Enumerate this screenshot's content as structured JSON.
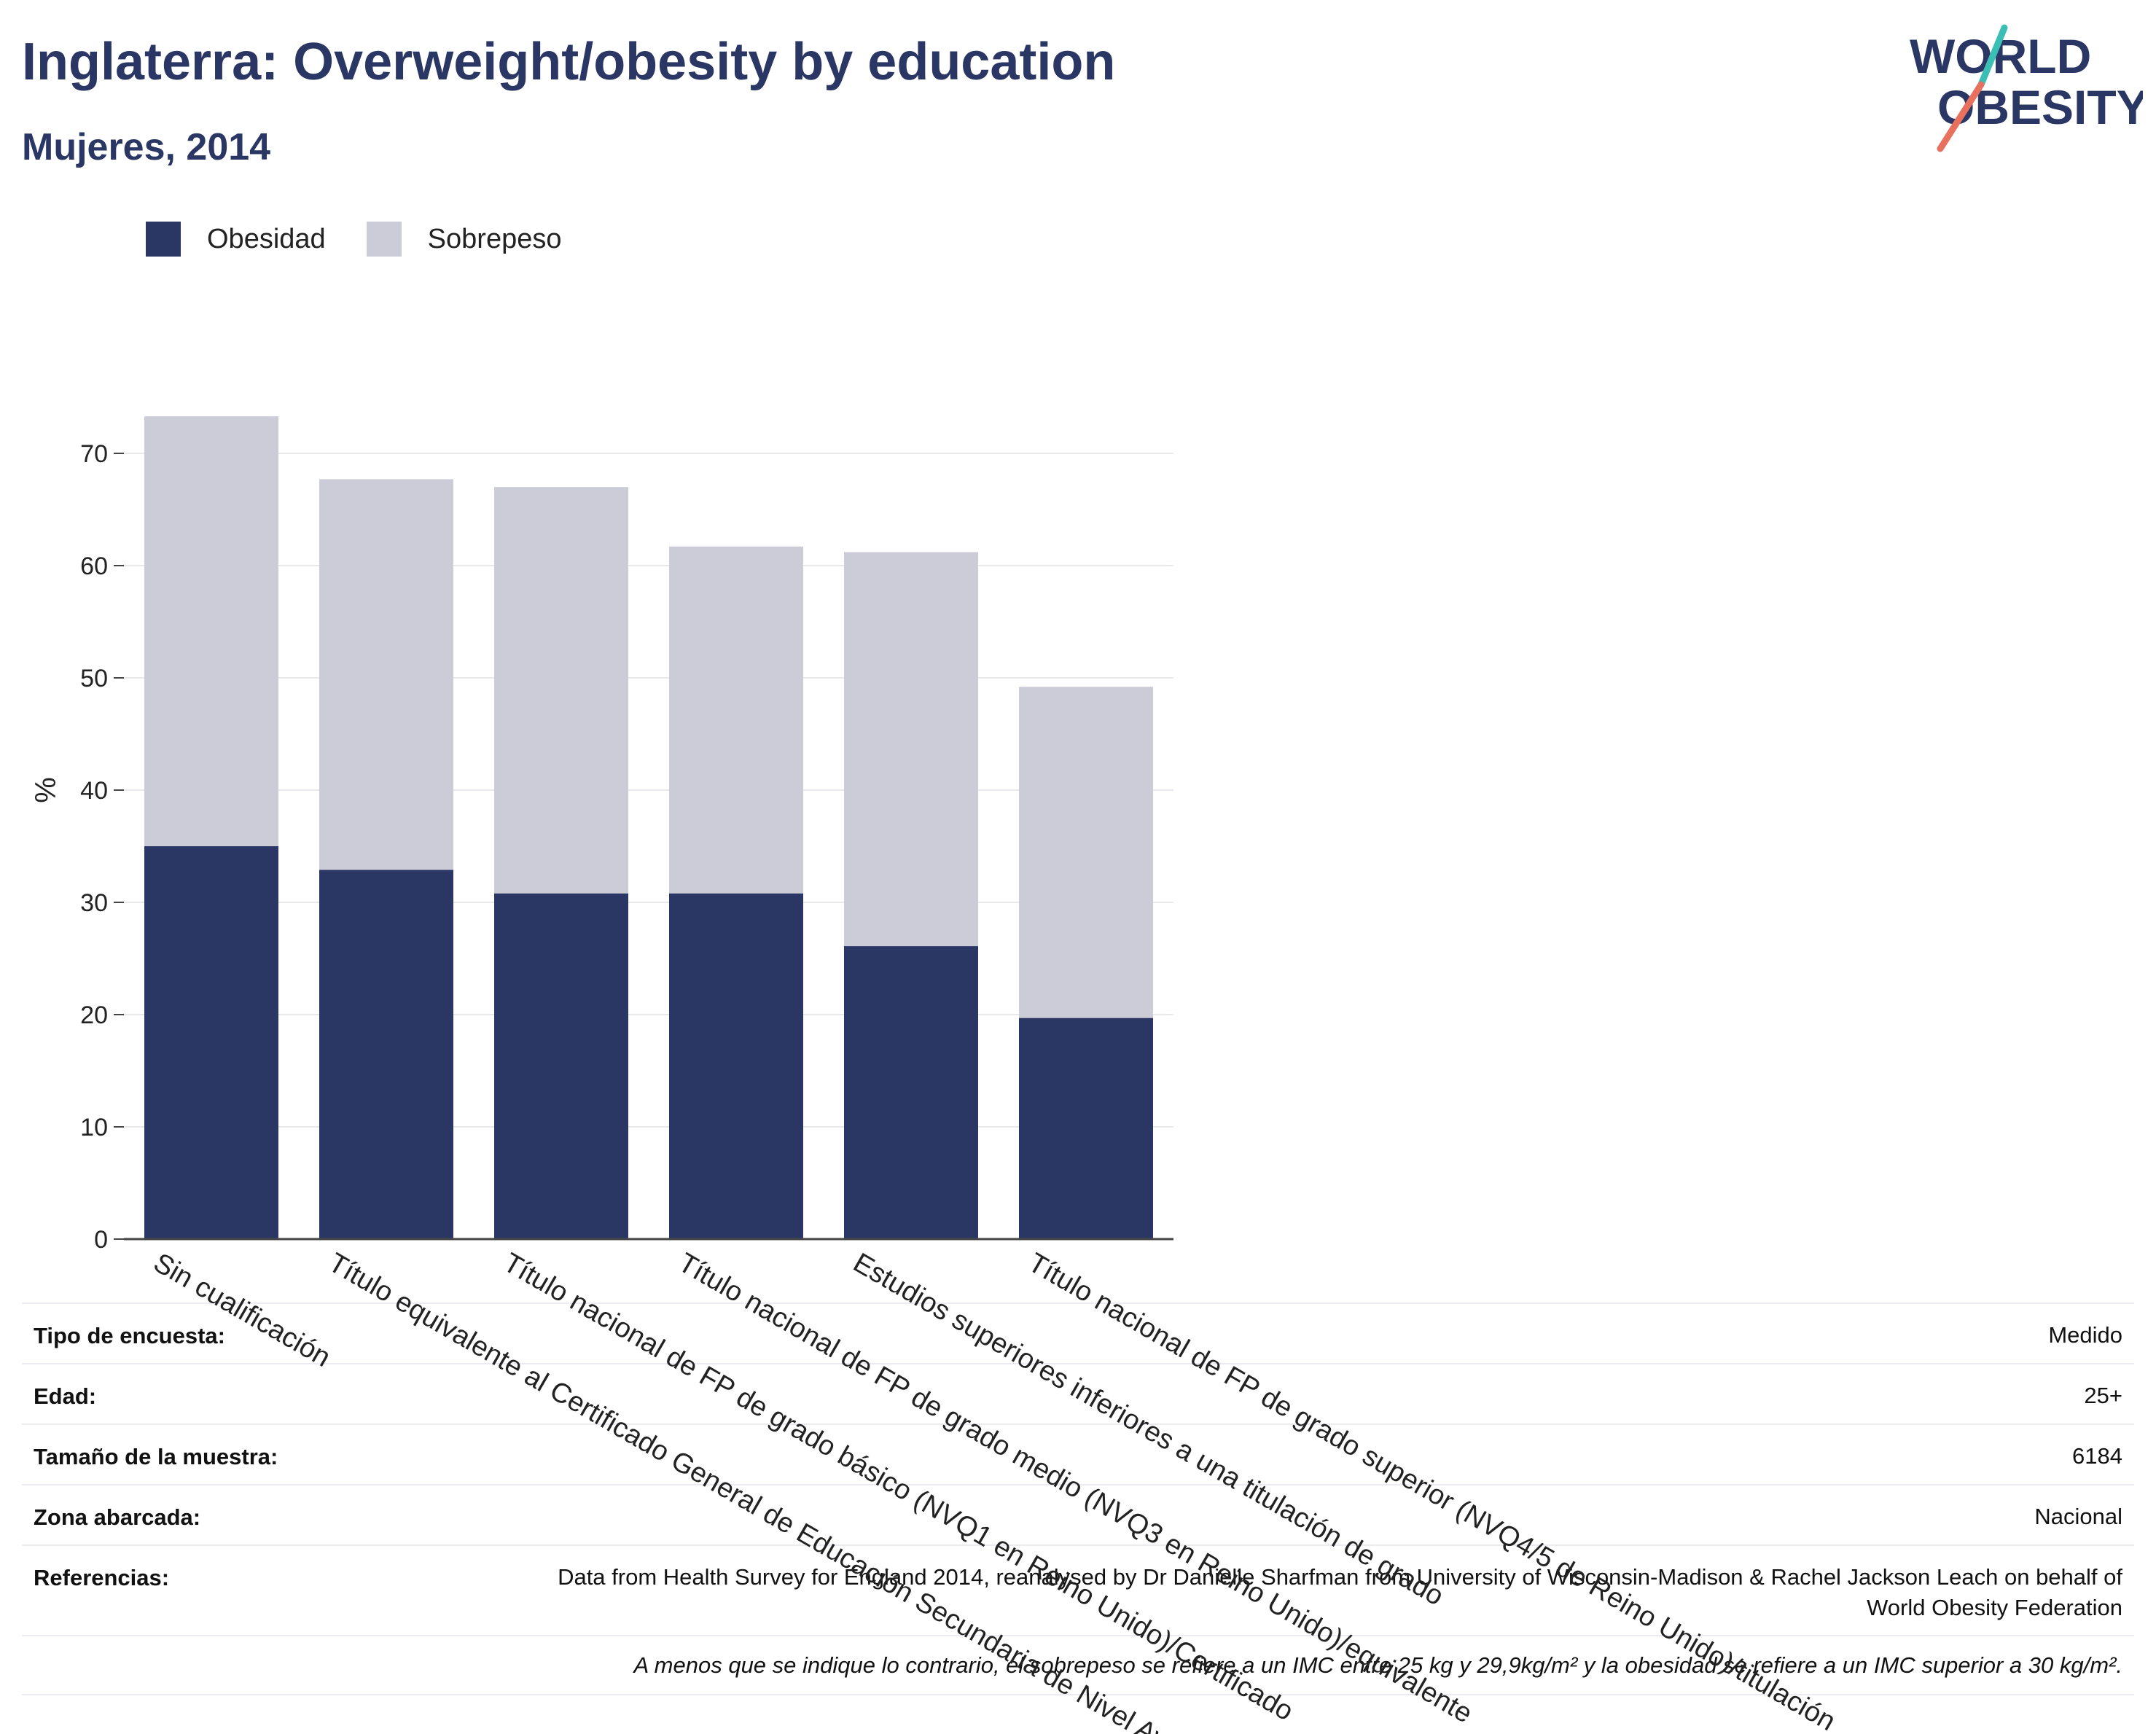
{
  "header": {
    "title": "Inglaterra: Overweight/obesity by education",
    "subtitle": "Mujeres, 2014"
  },
  "logo": {
    "line1": "WORLD",
    "line2": "OBESITY",
    "icon": "world-obesity-logo"
  },
  "colors": {
    "title": "#2a3663",
    "obesity": "#2a3663",
    "overweight": "#cbccd8",
    "logo_teal": "#3bbfb5",
    "logo_coral": "#e8705f"
  },
  "chart_data": {
    "type": "bar",
    "stacked": true,
    "categories": [
      "Sin cualificación",
      "Título equivalente al Certificado General de Educación Secundaria de Nivel Avanzado",
      "Título nacional de FP de grado básico (NVQ1 en Reino Unido)/Certificado",
      "Título nacional de FP de grado medio (NVQ3 en Reino Unido)/equivalente",
      "Estudios superiores inferiores a una titulación de grado",
      "Título nacional de FP de grado superior (NVQ4/5 de Reino Unido)/titulación"
    ],
    "series": [
      {
        "name": "Obesidad",
        "values": [
          35.0,
          32.9,
          30.8,
          30.8,
          26.1,
          19.7
        ]
      },
      {
        "name": "Sobrepeso",
        "values": [
          38.3,
          34.8,
          36.2,
          30.9,
          35.1,
          29.5
        ]
      }
    ],
    "ylabel": "%",
    "ylim": [
      0,
      75
    ],
    "yticks": [
      0,
      10,
      20,
      30,
      40,
      50,
      60,
      70
    ],
    "grid": true,
    "legend": "top-left"
  },
  "info": {
    "rows": [
      {
        "label": "Tipo de encuesta:",
        "value": "Medido"
      },
      {
        "label": "Edad:",
        "value": "25+"
      },
      {
        "label": "Tamaño de la muestra:",
        "value": "6184"
      },
      {
        "label": "Zona abarcada:",
        "value": "Nacional"
      },
      {
        "label": "Referencias:",
        "value": "Data from Health Survey for England 2014, reanalysed by Dr Danielle Sharfman from University of Wisconsin-Madison & Rachel Jackson Leach on behalf of World Obesity Federation"
      }
    ],
    "note": "A menos que se indique lo contrario, el sobrepeso se refiere a un IMC entre 25 kg y 29,9kg/m² y la obesidad se refiere a un IMC superior a 30 kg/m²."
  }
}
